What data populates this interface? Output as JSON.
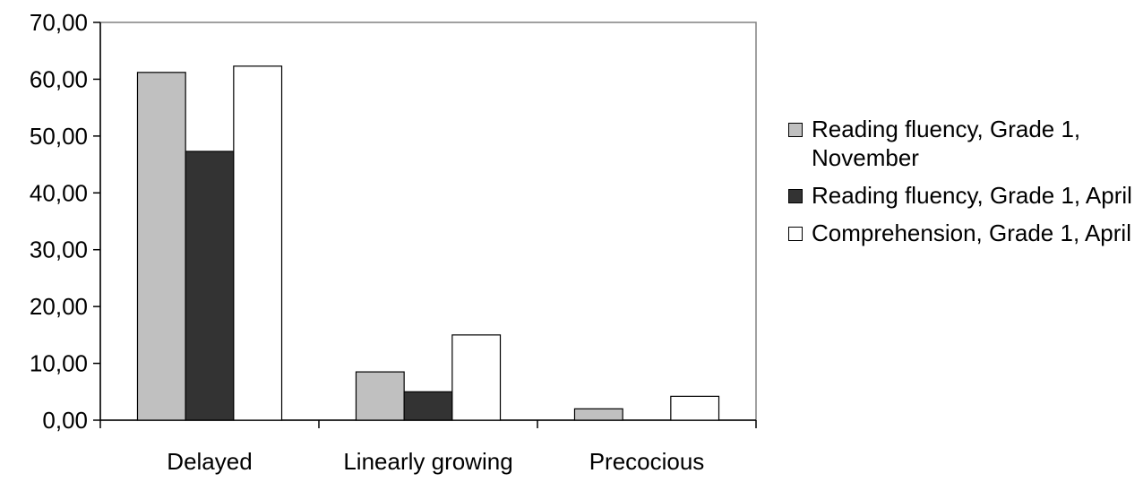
{
  "chart_data": {
    "type": "bar",
    "categories": [
      "Delayed",
      "Linearly growing",
      "Precocious"
    ],
    "series": [
      {
        "name": "Reading fluency, Grade 1, November",
        "color": "#c0c0c0",
        "values": [
          61.2,
          8.5,
          2.0
        ]
      },
      {
        "name": "Reading fluency, Grade 1, April",
        "color": "#333333",
        "values": [
          47.3,
          5.0,
          0.0
        ]
      },
      {
        "name": "Comprehension, Grade 1, April",
        "color": "#ffffff",
        "values": [
          62.3,
          15.0,
          4.2
        ]
      }
    ],
    "ylim": [
      0,
      70
    ],
    "yticks": [
      "0,00",
      "10,00",
      "20,00",
      "30,00",
      "40,00",
      "50,00",
      "60,00",
      "70,00"
    ],
    "title": "",
    "xlabel": "",
    "ylabel": "",
    "grid": false,
    "legend_position": "right"
  }
}
